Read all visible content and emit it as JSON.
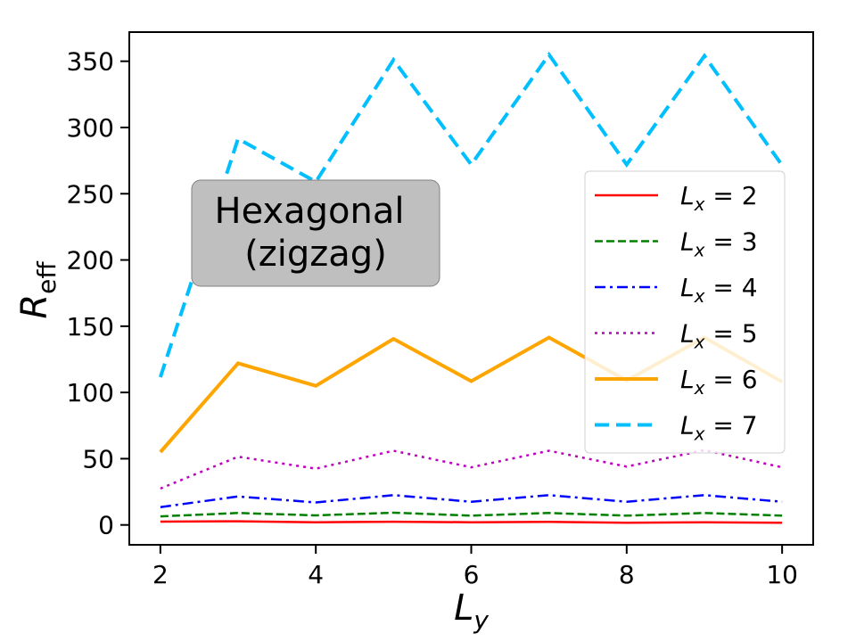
{
  "chart_data": {
    "type": "line",
    "xlabel": "L",
    "xlabel_sub": "y",
    "ylabel": "R",
    "ylabel_sub": "eff",
    "xlim": [
      1.6,
      10.4
    ],
    "ylim": [
      -15,
      372
    ],
    "x_ticks": [
      2,
      4,
      6,
      8,
      10
    ],
    "y_ticks": [
      0,
      50,
      100,
      150,
      200,
      250,
      300,
      350
    ],
    "grid": false,
    "legend_position": "center-right",
    "annotation": {
      "line1": "Hexagonal",
      "line2": "(zigzag)"
    },
    "x": [
      2,
      3,
      4,
      5,
      6,
      7,
      8,
      9,
      10
    ],
    "series": [
      {
        "name": "L_x = 2",
        "legend_label": "= 2",
        "color": "#ff0000",
        "style": "solid",
        "values": [
          2.5,
          2.8,
          2.0,
          2.4,
          2.0,
          2.3,
          1.7,
          2.0,
          1.6
        ]
      },
      {
        "name": "L_x = 3",
        "legend_label": "= 3",
        "color": "#008000",
        "style": "dashed",
        "values": [
          6.5,
          9.0,
          7.2,
          9.2,
          7.0,
          9.0,
          7.0,
          9.0,
          7.0
        ]
      },
      {
        "name": "L_x = 4",
        "legend_label": "= 4",
        "color": "#0000ff",
        "style": "dashdot",
        "values": [
          13.5,
          21.5,
          17.0,
          22.5,
          17.5,
          22.5,
          17.5,
          22.5,
          17.5
        ]
      },
      {
        "name": "L_x = 5",
        "legend_label": "= 5",
        "color": "#bf00bf",
        "style": "dotted",
        "values": [
          27.5,
          51.5,
          42.5,
          56.0,
          43.5,
          56.0,
          44.0,
          56.5,
          43.5
        ]
      },
      {
        "name": "L_x = 6",
        "legend_label": "= 6",
        "color": "#ffa500",
        "style": "solid",
        "values": [
          55.0,
          122.0,
          105.0,
          140.5,
          108.5,
          141.5,
          109.0,
          141.5,
          108.0
        ]
      },
      {
        "name": "L_x = 7",
        "legend_label": "= 7",
        "color": "#00bfff",
        "style": "dashed",
        "values": [
          111.5,
          291.5,
          259.0,
          351.0,
          272.0,
          355.0,
          272.0,
          354.0,
          271.5
        ]
      }
    ]
  }
}
